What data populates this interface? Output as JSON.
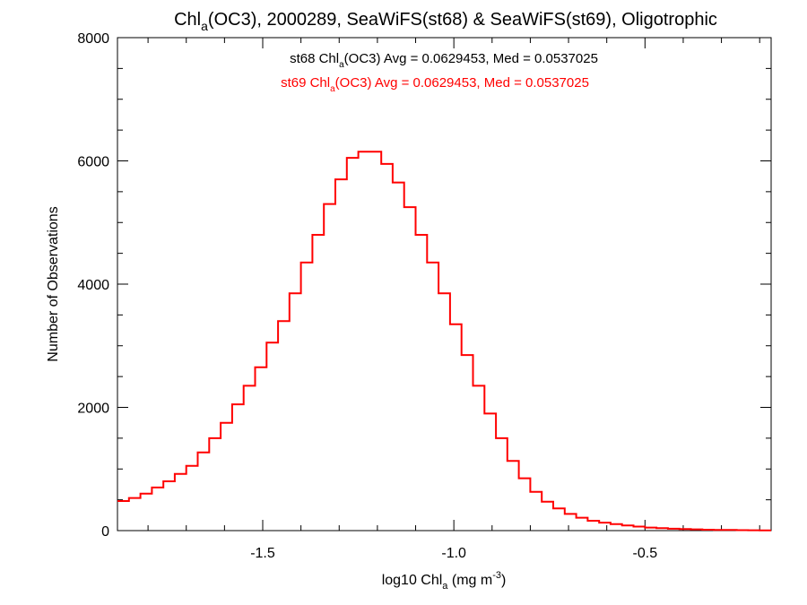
{
  "chart_data": {
    "type": "line",
    "title": {
      "chl": "Chl",
      "sub": "a",
      "rest": "(OC3), 2000289, SeaWiFS(st68) & SeaWiFS(st69), Oligotrophic"
    },
    "xlabel": {
      "pre": "log10 Chl",
      "sub": "a",
      "mid": " (mg m",
      "sup": "-3",
      "post": ")"
    },
    "ylabel": "Number of Observations",
    "xlim": [
      -1.88,
      -0.17
    ],
    "ylim": [
      0,
      8000
    ],
    "x_ticks": [
      -1.5,
      -1.0,
      -0.5
    ],
    "x_tick_labels": [
      "-1.5",
      "-1.0",
      "-0.5"
    ],
    "y_ticks": [
      0,
      2000,
      4000,
      6000,
      8000
    ],
    "y_tick_labels": [
      "0",
      "2000",
      "4000",
      "6000",
      "8000"
    ],
    "legend_placement": "top-center",
    "legend": [
      {
        "pre": "st68 Chl",
        "sub": "a",
        "post": "(OC3) Avg = 0.0629453, Med = 0.0537025",
        "color": "#000000"
      },
      {
        "pre": "st69 Chl",
        "sub": "a",
        "post": "(OC3) Avg = 0.0629453, Med = 0.0537025",
        "color": "#ff0000"
      }
    ],
    "series": [
      {
        "color": "#ff0000",
        "style": "step",
        "points": [
          [
            -1.88,
            480
          ],
          [
            -1.85,
            530
          ],
          [
            -1.82,
            600
          ],
          [
            -1.79,
            700
          ],
          [
            -1.76,
            800
          ],
          [
            -1.73,
            920
          ],
          [
            -1.7,
            1050
          ],
          [
            -1.67,
            1270
          ],
          [
            -1.64,
            1500
          ],
          [
            -1.61,
            1750
          ],
          [
            -1.58,
            2050
          ],
          [
            -1.55,
            2350
          ],
          [
            -1.52,
            2650
          ],
          [
            -1.49,
            3050
          ],
          [
            -1.46,
            3400
          ],
          [
            -1.43,
            3850
          ],
          [
            -1.4,
            4350
          ],
          [
            -1.37,
            4800
          ],
          [
            -1.34,
            5300
          ],
          [
            -1.31,
            5700
          ],
          [
            -1.28,
            6050
          ],
          [
            -1.25,
            6150
          ],
          [
            -1.22,
            6150
          ],
          [
            -1.19,
            5950
          ],
          [
            -1.16,
            5650
          ],
          [
            -1.13,
            5250
          ],
          [
            -1.1,
            4800
          ],
          [
            -1.07,
            4350
          ],
          [
            -1.04,
            3850
          ],
          [
            -1.01,
            3350
          ],
          [
            -0.98,
            2850
          ],
          [
            -0.95,
            2350
          ],
          [
            -0.92,
            1900
          ],
          [
            -0.89,
            1500
          ],
          [
            -0.86,
            1130
          ],
          [
            -0.83,
            850
          ],
          [
            -0.8,
            630
          ],
          [
            -0.77,
            470
          ],
          [
            -0.74,
            360
          ],
          [
            -0.71,
            270
          ],
          [
            -0.68,
            210
          ],
          [
            -0.65,
            160
          ],
          [
            -0.62,
            130
          ],
          [
            -0.59,
            105
          ],
          [
            -0.56,
            85
          ],
          [
            -0.53,
            65
          ],
          [
            -0.5,
            50
          ],
          [
            -0.47,
            40
          ],
          [
            -0.44,
            30
          ],
          [
            -0.41,
            25
          ],
          [
            -0.38,
            20
          ],
          [
            -0.35,
            15
          ],
          [
            -0.32,
            12
          ],
          [
            -0.29,
            10
          ],
          [
            -0.26,
            8
          ],
          [
            -0.23,
            6
          ],
          [
            -0.2,
            5
          ],
          [
            -0.17,
            4
          ]
        ]
      }
    ]
  }
}
